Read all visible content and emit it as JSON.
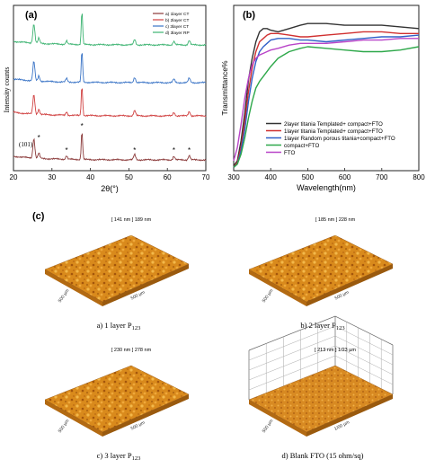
{
  "chart_data": [
    {
      "panel": "(a)",
      "type": "line",
      "xlabel": "2θ(°)",
      "ylabel": "Intensity counts",
      "xlim": [
        20,
        70
      ],
      "xticks": [
        20,
        30,
        40,
        50,
        60,
        70
      ],
      "grid": false,
      "legend": "top-right",
      "peak_label": "(101)",
      "peak_marker": "*",
      "peaks": [
        25.3,
        26.6,
        33.8,
        37.8,
        51.5,
        61.7,
        65.7
      ],
      "series": [
        {
          "name": "a) 1layer CT",
          "color": "#8b3a3a"
        },
        {
          "name": "b) 2layer CT",
          "color": "#d04040"
        },
        {
          "name": "c) 3layer CT",
          "color": "#3a74c6"
        },
        {
          "name": "d) 3layer RP",
          "color": "#3cb371"
        }
      ]
    },
    {
      "panel": "(b)",
      "type": "line",
      "xlabel": "Wavelength(nm)",
      "ylabel": "Transmittance%",
      "xlim": [
        300,
        800
      ],
      "xticks": [
        300,
        400,
        500,
        600,
        700,
        800
      ],
      "ylim": [
        0,
        100
      ],
      "grid": false,
      "legend": "bottom-center",
      "x": [
        300,
        310,
        320,
        330,
        340,
        350,
        360,
        370,
        380,
        390,
        400,
        420,
        450,
        480,
        500,
        550,
        600,
        650,
        700,
        750,
        800
      ],
      "series": [
        {
          "name": "2layer titania Templated+ compact+FTO",
          "color": "#333333",
          "values": [
            3,
            6,
            18,
            35,
            55,
            68,
            78,
            84,
            86,
            86,
            85,
            84,
            86,
            88,
            89,
            89,
            88,
            88,
            88,
            87,
            86
          ]
        },
        {
          "name": "1layer titania Templated+ compact+FTO",
          "color": "#d03030",
          "values": [
            2,
            5,
            14,
            30,
            48,
            62,
            72,
            78,
            80,
            82,
            83,
            83,
            82,
            81,
            81,
            82,
            83,
            84,
            84,
            83,
            83
          ]
        },
        {
          "name": "1layer Random porous titania+compact+FTO",
          "color": "#3060c8",
          "values": [
            2,
            4,
            12,
            25,
            42,
            56,
            66,
            72,
            75,
            77,
            79,
            80,
            80,
            79,
            79,
            78,
            79,
            80,
            81,
            81,
            82
          ]
        },
        {
          "name": "compact+FTO",
          "color": "#2ea84a",
          "values": [
            2,
            4,
            10,
            20,
            32,
            42,
            50,
            54,
            57,
            60,
            63,
            68,
            72,
            74,
            75,
            74,
            73,
            72,
            72,
            73,
            75
          ]
        },
        {
          "name": "FTO",
          "color": "#b844c8",
          "values": [
            6,
            14,
            28,
            44,
            56,
            64,
            68,
            70,
            71,
            72,
            73,
            74,
            76,
            77,
            77,
            77,
            78,
            79,
            79,
            80,
            80
          ]
        }
      ]
    }
  ],
  "afm": {
    "panel": "(c)",
    "images": [
      {
        "scale": "[ 141 nm ] 189 nm",
        "x_axis": "500 µm",
        "y_axis": "500 µm",
        "caption_prefix": "a) 1 layer P",
        "caption_sub": "123"
      },
      {
        "scale": "[ 185 nm ] 228 nm",
        "x_axis": "500 µm",
        "y_axis": "500 µm",
        "caption_prefix": "b) 2 layer P",
        "caption_sub": "123"
      },
      {
        "scale": "[ 230 nm ] 278 nm",
        "x_axis": "500 µm",
        "y_axis": "500 µm",
        "caption_prefix": "c) 3 layer P",
        "caption_sub": "123"
      },
      {
        "scale": "[ 213 nm ] 1/23 µm",
        "x_axis": "1/00 µm",
        "y_axis": "500 µm",
        "caption_prefix": "d) Blank FTO (15 ohm/sq)",
        "caption_sub": ""
      }
    ]
  }
}
